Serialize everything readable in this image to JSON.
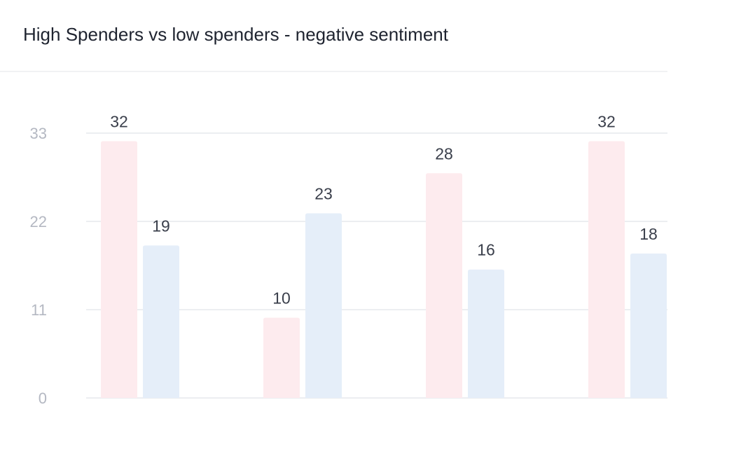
{
  "title": "High Spenders vs low spenders - negative sentiment",
  "colors": {
    "high_spenders": "#fdebee",
    "low_spenders": "#e5eef9",
    "gridline": "#eceef1",
    "title": "#1f2430",
    "tick_label": "#b4b8c2",
    "data_label": "#3a3f4b"
  },
  "chart_data": {
    "type": "bar",
    "title": "High Spenders vs low spenders - negative sentiment",
    "xlabel": "",
    "ylabel": "",
    "ylim": [
      0,
      33
    ],
    "yticks": [
      0,
      11,
      22,
      33
    ],
    "grid": true,
    "categories": [
      "",
      "",
      "",
      ""
    ],
    "series": [
      {
        "values": [
          32,
          10,
          28,
          32
        ],
        "color": "#fdebee"
      },
      {
        "values": [
          19,
          23,
          16,
          18
        ],
        "color": "#e5eef9"
      }
    ]
  }
}
